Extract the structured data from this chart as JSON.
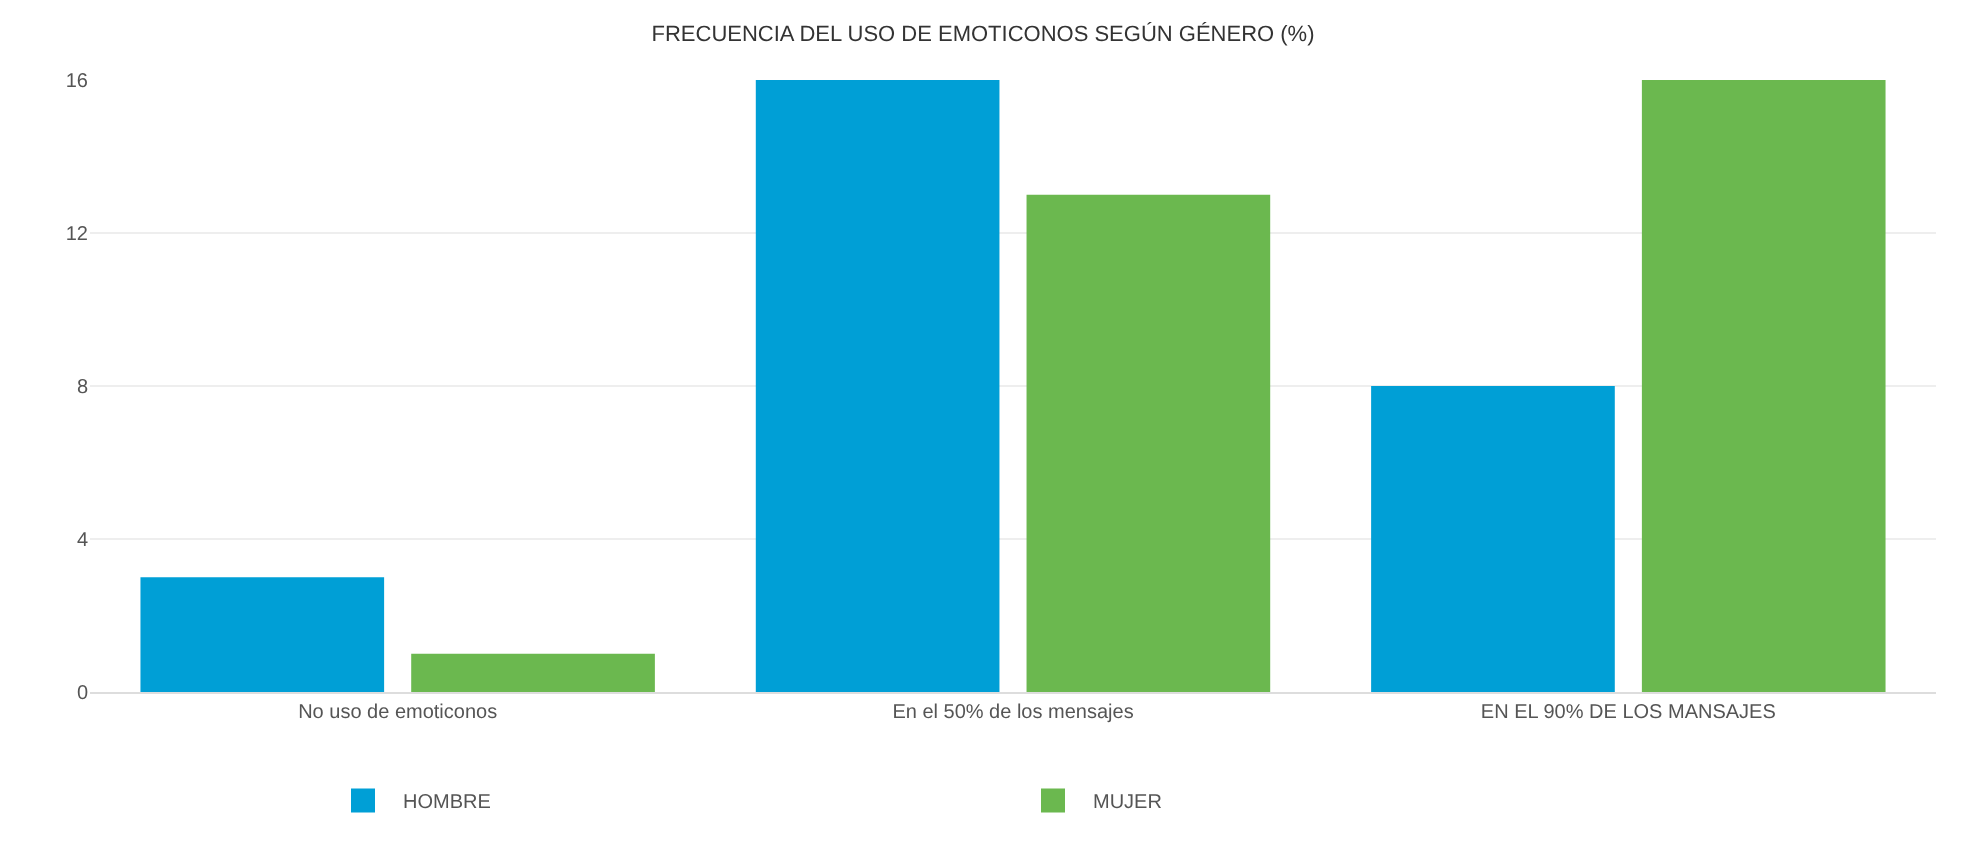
{
  "chart_data": {
    "type": "bar",
    "title": "FRECUENCIA DEL USO DE EMOTICONOS SEGÚN GÉNERO (%)",
    "categories": [
      "No uso de emoticonos",
      "En el 50% de los mensajes",
      "EN EL 90% DE LOS MANSAJES"
    ],
    "series": [
      {
        "name": "HOMBRE",
        "color": "#009fd6",
        "values": [
          3,
          16,
          8
        ]
      },
      {
        "name": "MUJER",
        "color": "#6bb84f",
        "values": [
          1,
          13,
          16
        ]
      }
    ],
    "ylim": [
      0,
      16
    ],
    "yticks": [
      0,
      4,
      8,
      12,
      16
    ],
    "grid": "y",
    "legend": "bottom"
  }
}
